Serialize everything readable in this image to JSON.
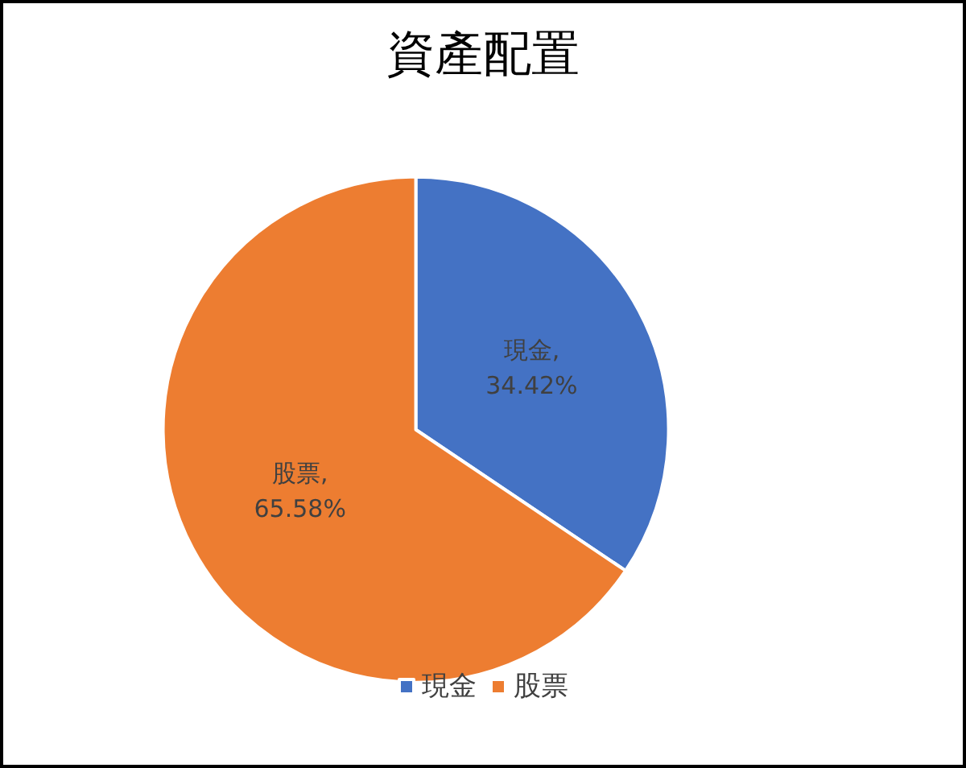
{
  "chart_data": {
    "type": "pie",
    "title": "資產配置",
    "categories": [
      "現金",
      "股票"
    ],
    "values": [
      34.42,
      65.58
    ],
    "colors": [
      "#4472c4",
      "#ed7d31"
    ],
    "value_labels": [
      "現金, 34.42%",
      "股票, 65.58%"
    ],
    "legend": "bottom"
  }
}
